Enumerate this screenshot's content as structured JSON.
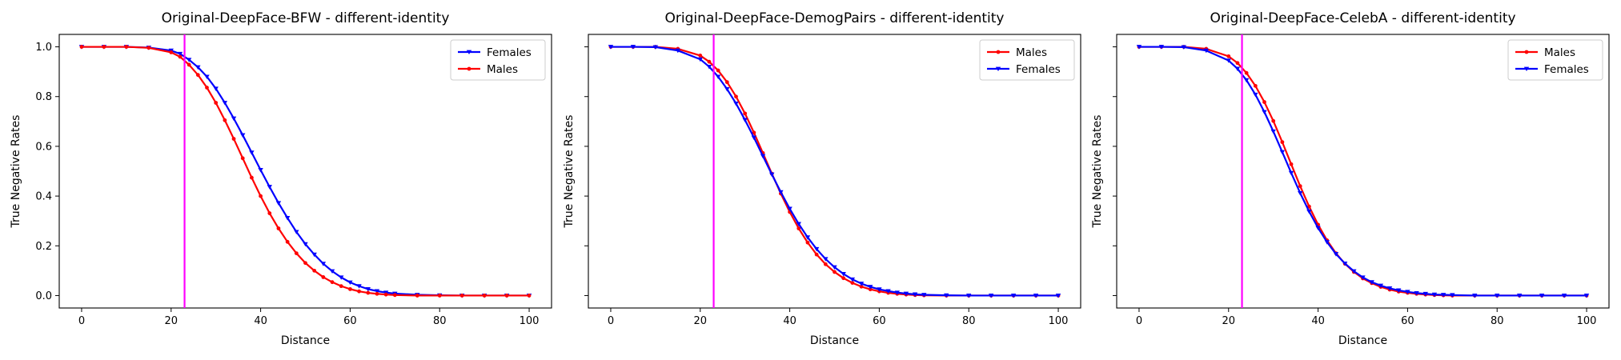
{
  "chart_data": [
    {
      "type": "line",
      "title": "Original-DeepFace-BFW - different-identity",
      "xlabel": "Distance",
      "ylabel": "True Negative Rates",
      "xlim": [
        -5,
        105
      ],
      "ylim": [
        -0.05,
        1.05
      ],
      "xticks": [
        0,
        20,
        40,
        60,
        80,
        100
      ],
      "yticks": [
        0.0,
        0.2,
        0.4,
        0.6,
        0.8,
        1.0
      ],
      "ytick_labels": [
        "0.0",
        "0.2",
        "0.4",
        "0.6",
        "0.8",
        "1.0"
      ],
      "show_ytick_labels": true,
      "vline_x": 23,
      "vline_color": "#ff00ff",
      "legend_position": "upper-right",
      "series": [
        {
          "name": "Females",
          "color": "#0000ff",
          "marker": "triangle-down",
          "x": [
            0,
            5,
            10,
            15,
            20,
            22,
            24,
            26,
            28,
            30,
            32,
            34,
            36,
            38,
            40,
            42,
            44,
            46,
            48,
            50,
            52,
            54,
            56,
            58,
            60,
            62,
            64,
            66,
            68,
            70,
            75,
            80,
            85,
            90,
            95,
            100
          ],
          "values": [
            1.0,
            1.0,
            1.0,
            0.997,
            0.985,
            0.972,
            0.948,
            0.918,
            0.88,
            0.832,
            0.775,
            0.712,
            0.645,
            0.575,
            0.505,
            0.437,
            0.372,
            0.312,
            0.256,
            0.207,
            0.165,
            0.128,
            0.098,
            0.073,
            0.053,
            0.038,
            0.026,
            0.018,
            0.012,
            0.008,
            0.003,
            0.001,
            0.0,
            0.0,
            0.0,
            0.0
          ]
        },
        {
          "name": "Males",
          "color": "#ff0000",
          "marker": "circle",
          "x": [
            0,
            5,
            10,
            15,
            20,
            22,
            24,
            26,
            28,
            30,
            32,
            34,
            36,
            38,
            40,
            42,
            44,
            46,
            48,
            50,
            52,
            54,
            56,
            58,
            60,
            62,
            64,
            66,
            68,
            70,
            75,
            80,
            85,
            90,
            95,
            100
          ],
          "values": [
            1.0,
            1.0,
            1.0,
            0.996,
            0.978,
            0.96,
            0.928,
            0.887,
            0.836,
            0.775,
            0.705,
            0.63,
            0.552,
            0.474,
            0.4,
            0.331,
            0.27,
            0.216,
            0.17,
            0.131,
            0.1,
            0.074,
            0.054,
            0.038,
            0.026,
            0.017,
            0.011,
            0.007,
            0.004,
            0.002,
            0.0,
            0.0,
            0.0,
            0.0,
            0.0,
            0.0
          ]
        }
      ]
    },
    {
      "type": "line",
      "title": "Original-DeepFace-DemogPairs - different-identity",
      "xlabel": "Distance",
      "ylabel": "True Negative Rates",
      "xlim": [
        -5,
        105
      ],
      "ylim": [
        -0.05,
        1.05
      ],
      "xticks": [
        0,
        20,
        40,
        60,
        80,
        100
      ],
      "yticks": [
        0.0,
        0.2,
        0.4,
        0.6,
        0.8,
        1.0
      ],
      "ytick_labels": [
        "0.0",
        "0.2",
        "0.4",
        "0.6",
        "0.8",
        "1.0"
      ],
      "show_ytick_labels": false,
      "vline_x": 23,
      "vline_color": "#ff00ff",
      "legend_position": "upper-right",
      "series": [
        {
          "name": "Males",
          "color": "#ff0000",
          "marker": "circle",
          "x": [
            0,
            5,
            10,
            15,
            20,
            22,
            24,
            26,
            28,
            30,
            32,
            34,
            36,
            38,
            40,
            42,
            44,
            46,
            48,
            50,
            52,
            54,
            56,
            58,
            60,
            62,
            64,
            66,
            68,
            70,
            75,
            80,
            85,
            90,
            95,
            100
          ],
          "values": [
            1.0,
            1.0,
            1.0,
            0.992,
            0.965,
            0.94,
            0.905,
            0.858,
            0.8,
            0.732,
            0.655,
            0.573,
            0.49,
            0.41,
            0.336,
            0.27,
            0.213,
            0.165,
            0.126,
            0.095,
            0.07,
            0.051,
            0.036,
            0.025,
            0.017,
            0.011,
            0.007,
            0.004,
            0.002,
            0.001,
            0.0,
            0.0,
            0.0,
            0.0,
            0.0,
            0.0
          ]
        },
        {
          "name": "Females",
          "color": "#0000ff",
          "marker": "triangle-down",
          "x": [
            0,
            5,
            10,
            15,
            20,
            22,
            24,
            26,
            28,
            30,
            32,
            34,
            36,
            38,
            40,
            42,
            44,
            46,
            48,
            50,
            52,
            54,
            56,
            58,
            60,
            62,
            64,
            66,
            68,
            70,
            75,
            80,
            85,
            90,
            95,
            100
          ],
          "values": [
            1.0,
            1.0,
            0.999,
            0.985,
            0.95,
            0.92,
            0.88,
            0.83,
            0.772,
            0.706,
            0.635,
            0.561,
            0.487,
            0.416,
            0.349,
            0.288,
            0.234,
            0.187,
            0.147,
            0.114,
            0.087,
            0.065,
            0.048,
            0.035,
            0.025,
            0.018,
            0.012,
            0.008,
            0.005,
            0.003,
            0.001,
            0.0,
            0.0,
            0.0,
            0.0,
            0.0
          ]
        }
      ]
    },
    {
      "type": "line",
      "title": "Original-DeepFace-CelebA - different-identity",
      "xlabel": "Distance",
      "ylabel": "True Negative Rates",
      "xlim": [
        -5,
        105
      ],
      "ylim": [
        -0.05,
        1.05
      ],
      "xticks": [
        0,
        20,
        40,
        60,
        80,
        100
      ],
      "yticks": [
        0.0,
        0.2,
        0.4,
        0.6,
        0.8,
        1.0
      ],
      "ytick_labels": [
        "0.0",
        "0.2",
        "0.4",
        "0.6",
        "0.8",
        "1.0"
      ],
      "show_ytick_labels": false,
      "vline_x": 23,
      "vline_color": "#ff00ff",
      "legend_position": "upper-right",
      "series": [
        {
          "name": "Males",
          "color": "#ff0000",
          "marker": "circle",
          "x": [
            0,
            5,
            10,
            15,
            20,
            22,
            24,
            26,
            28,
            30,
            32,
            34,
            36,
            38,
            40,
            42,
            44,
            46,
            48,
            50,
            52,
            54,
            56,
            58,
            60,
            62,
            64,
            66,
            68,
            70,
            75,
            80,
            85,
            90,
            95,
            100
          ],
          "values": [
            1.0,
            1.0,
            1.0,
            0.992,
            0.962,
            0.935,
            0.895,
            0.843,
            0.778,
            0.702,
            0.617,
            0.528,
            0.44,
            0.358,
            0.285,
            0.222,
            0.17,
            0.128,
            0.095,
            0.069,
            0.05,
            0.035,
            0.024,
            0.016,
            0.011,
            0.007,
            0.004,
            0.002,
            0.001,
            0.0,
            0.0,
            0.0,
            0.0,
            0.0,
            0.0,
            0.0
          ]
        },
        {
          "name": "Females",
          "color": "#0000ff",
          "marker": "triangle-down",
          "x": [
            0,
            5,
            10,
            15,
            20,
            22,
            24,
            26,
            28,
            30,
            32,
            34,
            36,
            38,
            40,
            42,
            44,
            46,
            48,
            50,
            52,
            54,
            56,
            58,
            60,
            62,
            64,
            66,
            68,
            70,
            75,
            80,
            85,
            90,
            95,
            100
          ],
          "values": [
            1.0,
            1.0,
            0.999,
            0.985,
            0.945,
            0.912,
            0.866,
            0.808,
            0.738,
            0.66,
            0.577,
            0.493,
            0.412,
            0.338,
            0.272,
            0.215,
            0.167,
            0.129,
            0.098,
            0.073,
            0.054,
            0.04,
            0.029,
            0.021,
            0.015,
            0.01,
            0.007,
            0.004,
            0.003,
            0.002,
            0.0,
            0.0,
            0.0,
            0.0,
            0.0,
            0.0
          ]
        }
      ]
    }
  ]
}
